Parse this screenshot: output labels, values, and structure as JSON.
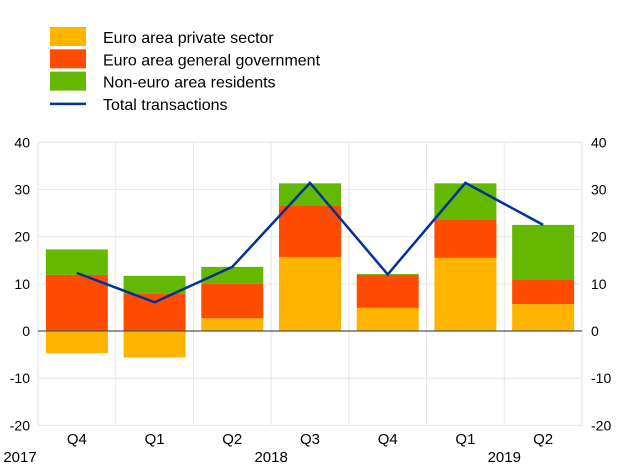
{
  "chart_data": {
    "type": "bar",
    "stacked": true,
    "categories": [
      "Q4",
      "Q1",
      "Q2",
      "Q3",
      "Q4",
      "Q1",
      "Q2"
    ],
    "years": [
      {
        "label": "2017",
        "at_category": -0.5
      },
      {
        "label": "2018",
        "at_category": 2.5
      },
      {
        "label": "2019",
        "at_category": 5.5
      }
    ],
    "series": [
      {
        "name": "Euro area private sector",
        "kind": "bar",
        "color": "#FFB400",
        "values": [
          -4.7,
          -5.6,
          2.7,
          15.7,
          4.9,
          15.5,
          5.7
        ]
      },
      {
        "name": "Euro area general government",
        "kind": "bar",
        "color": "#FF4B00",
        "values": [
          11.9,
          8.0,
          7.3,
          10.8,
          7.0,
          8.2,
          5.3
        ]
      },
      {
        "name": "Non-euro area residents",
        "kind": "bar",
        "color": "#65B800",
        "values": [
          5.4,
          3.7,
          3.6,
          4.8,
          0.2,
          7.6,
          11.5
        ]
      },
      {
        "name": "Total transactions",
        "kind": "line",
        "color": "#003299",
        "values": [
          12.3,
          6.1,
          13.6,
          31.4,
          12.0,
          31.4,
          22.5
        ]
      }
    ],
    "ylim": [
      -20,
      40
    ],
    "yticks": [
      40,
      30,
      20,
      10,
      0,
      -10,
      -20
    ],
    "grid": true,
    "legend": "top-left",
    "title": "",
    "xlabel": "",
    "ylabel": ""
  }
}
